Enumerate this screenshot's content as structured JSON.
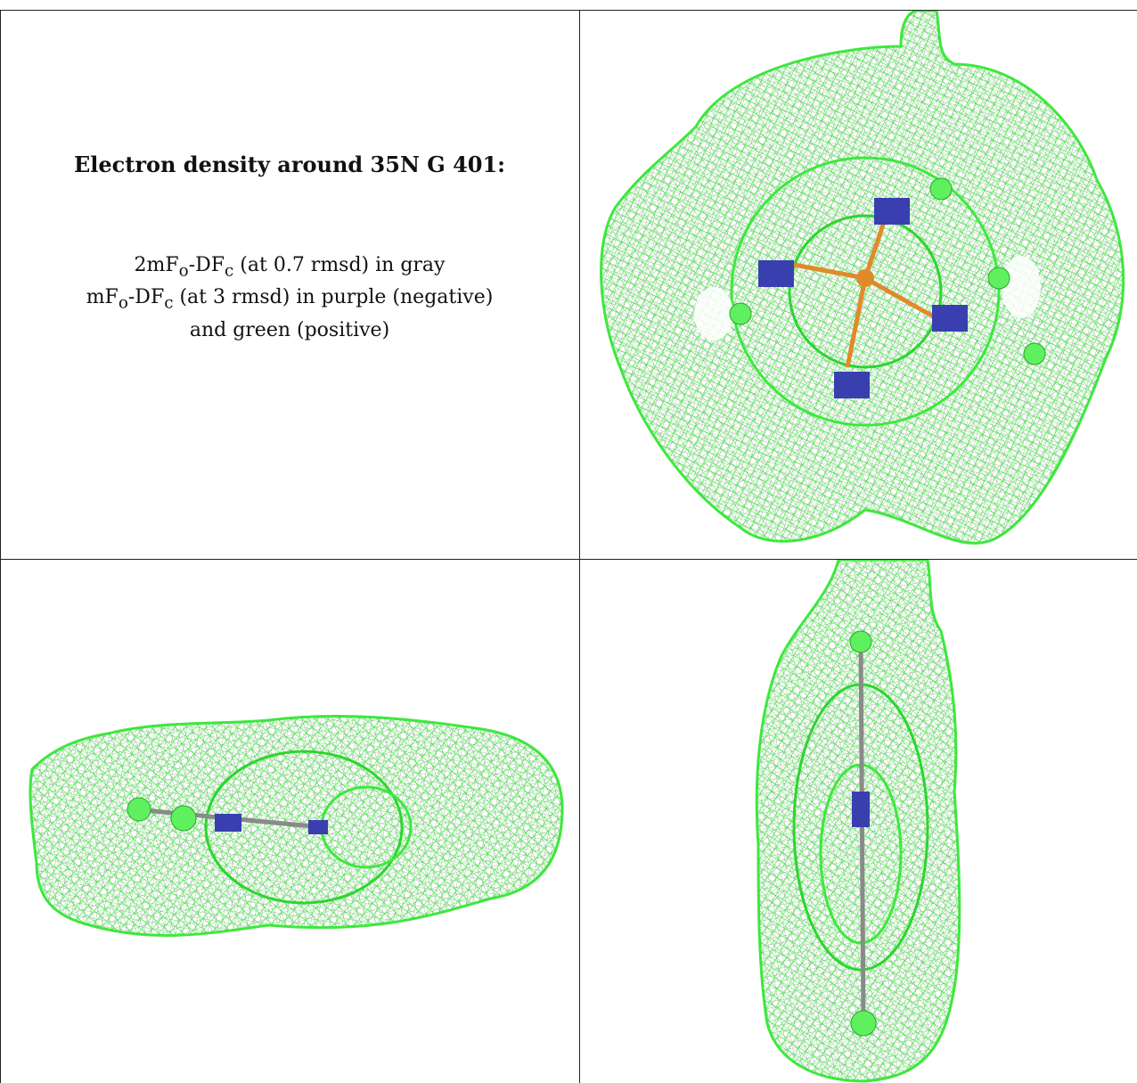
{
  "caption": {
    "title": "Electron density around 35N G 401:",
    "line1": {
      "pre": "2mF",
      "sub1": "o",
      "mid": "-DF",
      "sub2": "c",
      "post": " (at 0.7 rmsd) in gray"
    },
    "line2": {
      "pre": "mF",
      "sub1": "o",
      "mid": "-DF",
      "sub2": "c",
      "post": " (at 3 rmsd) in purple (negative)"
    },
    "line3": "and green (positive)"
  },
  "colors": {
    "mesh_positive": "#3ee83e",
    "mesh_gray": "#b9b2bd",
    "nitrogen": "#3a3fb0",
    "metal": "#e08a2a",
    "grid_line": "#222222"
  },
  "panels": [
    "top-view",
    "side-view",
    "end-view"
  ]
}
